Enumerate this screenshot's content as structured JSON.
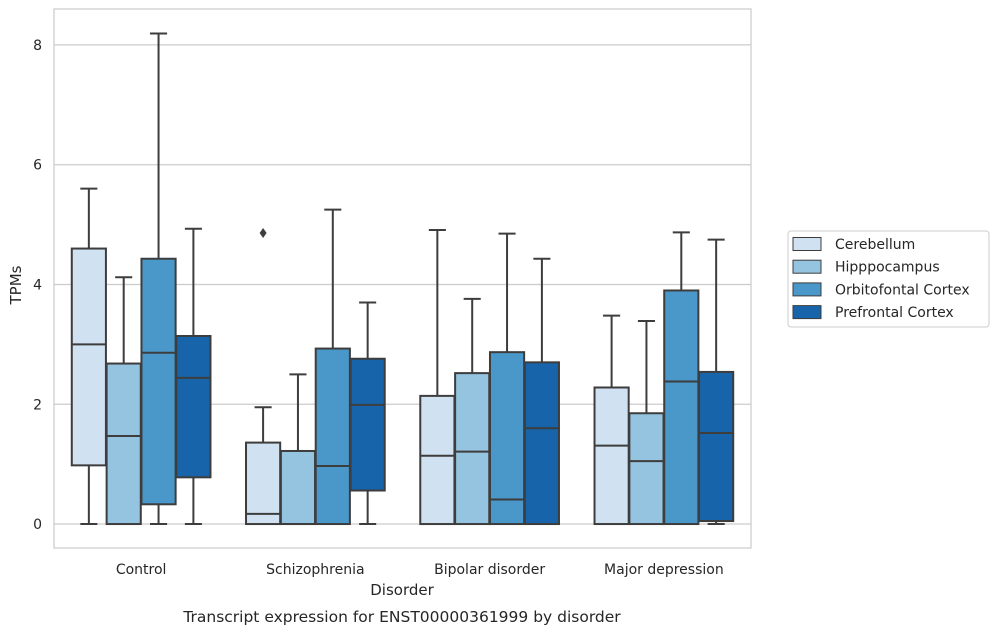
{
  "chart_data": {
    "type": "box",
    "xlabel": "Disorder",
    "ylabel": "TPMs",
    "caption": "Transcript expression for ENST00000361999 by disorder",
    "ylim": [
      -0.4,
      8.6
    ],
    "yticks": [
      0,
      2,
      4,
      6,
      8
    ],
    "grid": "horizontal",
    "legend_position": "right",
    "categories": [
      "Control",
      "Schizophrenia",
      "Bipolar disorder",
      "Major depression"
    ],
    "series": [
      {
        "name": "Cerebellum",
        "color": "#d0e1f2",
        "boxes": [
          {
            "whislo": 0,
            "q1": 0.98,
            "median": 3.0,
            "q3": 4.6,
            "whishi": 5.6,
            "fliers": []
          },
          {
            "whislo": 0,
            "q1": 0,
            "median": 0.17,
            "q3": 1.36,
            "whishi": 1.95,
            "fliers": [
              4.86
            ]
          },
          {
            "whislo": 0,
            "q1": 0,
            "median": 1.14,
            "q3": 2.14,
            "whishi": 4.91,
            "fliers": []
          },
          {
            "whislo": 0,
            "q1": 0,
            "median": 1.31,
            "q3": 2.28,
            "whishi": 3.48,
            "fliers": []
          }
        ]
      },
      {
        "name": "Hipppocampus",
        "color": "#94c4df",
        "boxes": [
          {
            "whislo": 0,
            "q1": 0,
            "median": 1.47,
            "q3": 2.68,
            "whishi": 4.12,
            "fliers": []
          },
          {
            "whislo": 0,
            "q1": 0,
            "median": 0,
            "q3": 1.22,
            "whishi": 2.5,
            "fliers": []
          },
          {
            "whislo": 0,
            "q1": 0,
            "median": 1.21,
            "q3": 2.52,
            "whishi": 3.76,
            "fliers": []
          },
          {
            "whislo": 0,
            "q1": 0,
            "median": 1.05,
            "q3": 1.85,
            "whishi": 3.39,
            "fliers": []
          }
        ]
      },
      {
        "name": "Orbitofontal Cortex",
        "color": "#4a98c9",
        "boxes": [
          {
            "whislo": 0,
            "q1": 0.33,
            "median": 2.86,
            "q3": 4.43,
            "whishi": 8.19,
            "fliers": []
          },
          {
            "whislo": 0,
            "q1": 0,
            "median": 0.97,
            "q3": 2.93,
            "whishi": 5.25,
            "fliers": []
          },
          {
            "whislo": 0,
            "q1": 0,
            "median": 0.41,
            "q3": 2.87,
            "whishi": 4.85,
            "fliers": []
          },
          {
            "whislo": 0,
            "q1": 0,
            "median": 2.38,
            "q3": 3.9,
            "whishi": 4.87,
            "fliers": []
          }
        ]
      },
      {
        "name": "Prefrontal Cortex",
        "color": "#1764ab",
        "boxes": [
          {
            "whislo": 0,
            "q1": 0.78,
            "median": 2.44,
            "q3": 3.14,
            "whishi": 4.93,
            "fliers": []
          },
          {
            "whislo": 0,
            "q1": 0.56,
            "median": 1.99,
            "q3": 2.76,
            "whishi": 3.7,
            "fliers": []
          },
          {
            "whislo": 0,
            "q1": 0,
            "median": 1.6,
            "q3": 2.7,
            "whishi": 4.43,
            "fliers": []
          },
          {
            "whislo": 0,
            "q1": 0.05,
            "median": 1.52,
            "q3": 2.54,
            "whishi": 4.75,
            "fliers": []
          }
        ]
      }
    ]
  }
}
